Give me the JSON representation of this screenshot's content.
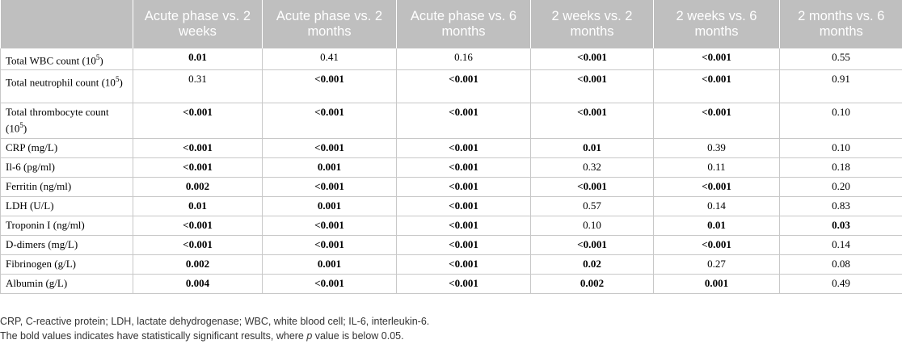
{
  "table": {
    "columns": [
      "",
      "Acute phase vs. 2 weeks",
      "Acute phase vs. 2 months",
      "Acute phase vs. 6 months",
      "2 weeks vs. 2 months",
      "2 weeks vs. 6 months",
      "2 months vs. 6 months"
    ],
    "rows": [
      {
        "label_main": "Total WBC count (10",
        "label_sup": "5",
        "label_end": ")",
        "values": [
          "0.01",
          "0.41",
          "0.16",
          "<0.001",
          "<0.001",
          "0.55"
        ],
        "bold": [
          true,
          false,
          false,
          true,
          true,
          false
        ]
      },
      {
        "label_main": "Total neutrophil count (10",
        "label_sup": "5",
        "label_end": ")",
        "values": [
          "0.31",
          "<0.001",
          "<0.001",
          "<0.001",
          "<0.001",
          "0.91"
        ],
        "bold": [
          false,
          true,
          true,
          true,
          true,
          false
        ]
      },
      {
        "label_main": "Total thrombocyte count (10",
        "label_sup": "5",
        "label_end": ")",
        "values": [
          "<0.001",
          "<0.001",
          "<0.001",
          "<0.001",
          "<0.001",
          "0.10"
        ],
        "bold": [
          true,
          true,
          true,
          true,
          true,
          false
        ]
      },
      {
        "label_main": "CRP (mg/L)",
        "label_sup": "",
        "label_end": "",
        "values": [
          "<0.001",
          "<0.001",
          "<0.001",
          "0.01",
          "0.39",
          "0.10"
        ],
        "bold": [
          true,
          true,
          true,
          true,
          false,
          false
        ]
      },
      {
        "label_main": "Il-6 (pg/ml)",
        "label_sup": "",
        "label_end": "",
        "values": [
          "<0.001",
          "0.001",
          "<0.001",
          "0.32",
          "0.11",
          "0.18"
        ],
        "bold": [
          true,
          true,
          true,
          false,
          false,
          false
        ]
      },
      {
        "label_main": "Ferritin (ng/ml)",
        "label_sup": "",
        "label_end": "",
        "values": [
          "0.002",
          "<0.001",
          "<0.001",
          "<0.001",
          "<0.001",
          "0.20"
        ],
        "bold": [
          true,
          true,
          true,
          true,
          true,
          false
        ]
      },
      {
        "label_main": "LDH (U/L)",
        "label_sup": "",
        "label_end": "",
        "values": [
          "0.01",
          "0.001",
          "<0.001",
          "0.57",
          "0.14",
          "0.83"
        ],
        "bold": [
          true,
          true,
          true,
          false,
          false,
          false
        ]
      },
      {
        "label_main": "Troponin I (ng/ml)",
        "label_sup": "",
        "label_end": "",
        "values": [
          "<0.001",
          "<0.001",
          "<0.001",
          "0.10",
          "0.01",
          "0.03"
        ],
        "bold": [
          true,
          true,
          true,
          false,
          true,
          true
        ]
      },
      {
        "label_main": "D-dimers (mg/L)",
        "label_sup": "",
        "label_end": "",
        "values": [
          "<0.001",
          "<0.001",
          "<0.001",
          "<0.001",
          "<0.001",
          "0.14"
        ],
        "bold": [
          true,
          true,
          true,
          true,
          true,
          false
        ]
      },
      {
        "label_main": "Fibrinogen (g/L)",
        "label_sup": "",
        "label_end": "",
        "values": [
          "0.002",
          "0.001",
          "<0.001",
          "0.02",
          "0.27",
          "0.08"
        ],
        "bold": [
          true,
          true,
          true,
          true,
          false,
          false
        ]
      },
      {
        "label_main": "Albumin (g/L)",
        "label_sup": "",
        "label_end": "",
        "values": [
          "0.004",
          "<0.001",
          "<0.001",
          "0.002",
          "0.001",
          "0.49"
        ],
        "bold": [
          true,
          true,
          true,
          true,
          true,
          false
        ]
      }
    ]
  },
  "footnotes": {
    "abbreviations": "CRP, C-reactive protein; LDH, lactate dehydrogenase; WBC, white blood cell; IL-6, interleukin-6.",
    "note_pre": "The bold values indicates have statistically significant results, where ",
    "note_italic": "p",
    "note_post": " value is below 0.05."
  },
  "colors": {
    "header_bg": "#bfbfbf",
    "header_text": "#ffffff",
    "grid": "#c8c8c8"
  }
}
